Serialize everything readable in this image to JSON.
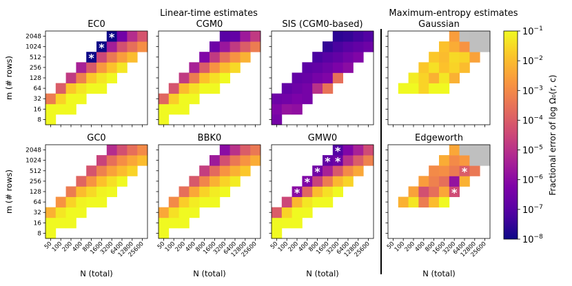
{
  "figure": {
    "group_titles": [
      "Linear-time estimates",
      "Maximum-entropy estimates"
    ],
    "colorbar": {
      "label": "Fractional error of log Ω₀(r, c)",
      "ticks": [
        {
          "exp": -1,
          "text": "10",
          "sup": "−1"
        },
        {
          "exp": -2,
          "text": "10",
          "sup": "−2"
        },
        {
          "exp": -3,
          "text": "10",
          "sup": "−3"
        },
        {
          "exp": -4,
          "text": "10",
          "sup": "−4"
        },
        {
          "exp": -5,
          "text": "10",
          "sup": "−5"
        },
        {
          "exp": -6,
          "text": "10",
          "sup": "−6"
        },
        {
          "exp": -7,
          "text": "10",
          "sup": "−7"
        },
        {
          "exp": -8,
          "text": "10",
          "sup": "−8"
        }
      ],
      "scale": "log",
      "range": [
        -8,
        -1
      ],
      "colormap": "plasma"
    }
  },
  "chart_data": [
    {
      "type": "heatmap",
      "title": "EC0",
      "ylabel": "m (# rows)",
      "xlabel": "",
      "x": [
        "50",
        "100",
        "200",
        "400",
        "800",
        "1600",
        "3200",
        "6400",
        "12800",
        "25600"
      ],
      "y": [
        "8",
        "16",
        "32",
        "64",
        "128",
        "256",
        "512",
        "1024",
        "2048"
      ],
      "scale": "log",
      "log10_values": [
        [
          -1.0,
          null,
          null,
          null,
          null,
          null,
          null,
          null,
          null,
          null
        ],
        [
          -1.0,
          -1.0,
          -1.0,
          null,
          null,
          null,
          null,
          null,
          null,
          null
        ],
        [
          -3.3,
          -1.6,
          -1.0,
          -1.0,
          null,
          null,
          null,
          null,
          null,
          null
        ],
        [
          null,
          -4.0,
          -1.8,
          -1.3,
          -1.0,
          -1.0,
          null,
          null,
          null,
          null
        ],
        [
          null,
          null,
          -4.8,
          -3.2,
          -1.8,
          -1.3,
          -1.0,
          null,
          null,
          null
        ],
        [
          null,
          null,
          null,
          -5.4,
          -4.1,
          -2.7,
          -1.9,
          -1.3,
          null,
          null
        ],
        [
          null,
          null,
          null,
          null,
          -8.0,
          -4.5,
          -3.4,
          -2.6,
          -2.0,
          null
        ],
        [
          null,
          null,
          null,
          null,
          null,
          -8.0,
          -5.5,
          -4.3,
          -3.6,
          -2.9
        ],
        [
          null,
          null,
          null,
          null,
          null,
          null,
          -8.0,
          -6.5,
          -5.1,
          -4.2
        ]
      ],
      "stars": [
        [
          6,
          4
        ],
        [
          7,
          5
        ],
        [
          8,
          6
        ]
      ]
    },
    {
      "type": "heatmap",
      "title": "CGM0",
      "ylabel": "",
      "xlabel": "",
      "x": [
        "50",
        "100",
        "200",
        "400",
        "800",
        "1600",
        "3200",
        "6400",
        "12800",
        "25600"
      ],
      "y": [
        "8",
        "16",
        "32",
        "64",
        "128",
        "256",
        "512",
        "1024",
        "2048"
      ],
      "scale": "log",
      "log10_values": [
        [
          -1.0,
          null,
          null,
          null,
          null,
          null,
          null,
          null,
          null,
          null
        ],
        [
          -1.0,
          -1.0,
          -1.0,
          null,
          null,
          null,
          null,
          null,
          null,
          null
        ],
        [
          -3.8,
          -1.7,
          -1.0,
          -1.0,
          null,
          null,
          null,
          null,
          null,
          null
        ],
        [
          null,
          -4.2,
          -2.0,
          -1.4,
          -1.0,
          -1.0,
          null,
          null,
          null,
          null
        ],
        [
          null,
          null,
          -4.8,
          -3.3,
          -1.9,
          -1.4,
          -1.0,
          null,
          null,
          null
        ],
        [
          null,
          null,
          null,
          -5.4,
          -4.0,
          -2.8,
          -2.0,
          -1.5,
          null,
          null
        ],
        [
          null,
          null,
          null,
          null,
          -6.2,
          -4.8,
          -3.6,
          -2.8,
          -2.2,
          null
        ],
        [
          null,
          null,
          null,
          null,
          null,
          -6.6,
          -5.7,
          -4.8,
          -4.0,
          -3.3
        ],
        [
          null,
          null,
          null,
          null,
          null,
          null,
          -7.0,
          -6.8,
          -5.6,
          -4.8
        ]
      ],
      "stars": []
    },
    {
      "type": "heatmap",
      "title": "SIS (CGM0-based)",
      "ylabel": "",
      "xlabel": "",
      "x": [
        "50",
        "100",
        "200",
        "400",
        "800",
        "1600",
        "3200",
        "6400",
        "12800",
        "25600"
      ],
      "y": [
        "8",
        "16",
        "32",
        "64",
        "128",
        "256",
        "512",
        "1024",
        "2048"
      ],
      "scale": "log",
      "log10_values": [
        [
          -6.4,
          null,
          null,
          null,
          null,
          null,
          null,
          null,
          null,
          null
        ],
        [
          -6.2,
          -5.8,
          -5.9,
          null,
          null,
          null,
          null,
          null,
          null,
          null
        ],
        [
          -6.6,
          -6.5,
          -6.3,
          -6.4,
          null,
          null,
          null,
          null,
          null,
          null
        ],
        [
          null,
          -6.8,
          -6.6,
          -6.4,
          -5.0,
          -3.5,
          null,
          null,
          null,
          null
        ],
        [
          null,
          null,
          -6.8,
          -6.7,
          -6.4,
          -6.2,
          -3.6,
          null,
          null,
          null
        ],
        [
          null,
          null,
          null,
          -6.9,
          -6.8,
          -6.6,
          -6.3,
          -6.0,
          null,
          null
        ],
        [
          null,
          null,
          null,
          null,
          -7.2,
          -7.0,
          -6.8,
          -6.5,
          -6.2,
          null
        ],
        [
          null,
          null,
          null,
          null,
          null,
          -7.5,
          -7.2,
          -7.0,
          -6.8,
          -6.6
        ],
        [
          null,
          null,
          null,
          null,
          null,
          null,
          -7.6,
          -7.5,
          -7.3,
          -7.1
        ]
      ],
      "stars": []
    },
    {
      "type": "heatmap",
      "title": "Gaussian",
      "ylabel": "",
      "xlabel": "",
      "x": [
        "50",
        "100",
        "200",
        "400",
        "800",
        "1600",
        "3200",
        "6400",
        "12800",
        "25600"
      ],
      "y": [
        "8",
        "16",
        "32",
        "64",
        "128",
        "256",
        "512",
        "1024",
        "2048"
      ],
      "scale": "log",
      "missing_color": "#bfbfbf",
      "log10_values": [
        [
          null,
          null,
          null,
          null,
          null,
          null,
          null,
          null,
          null,
          null
        ],
        [
          null,
          null,
          null,
          null,
          null,
          null,
          null,
          null,
          null,
          null
        ],
        [
          null,
          null,
          null,
          null,
          null,
          null,
          null,
          null,
          null,
          null
        ],
        [
          null,
          -1.0,
          -1.0,
          -1.6,
          -1.0,
          -1.0,
          null,
          null,
          null,
          null
        ],
        [
          null,
          null,
          -1.2,
          -1.6,
          -2.2,
          -1.3,
          -2.2,
          null,
          null,
          null
        ],
        [
          null,
          null,
          null,
          -1.8,
          -1.4,
          -1.9,
          -1.6,
          -2.0,
          null,
          null
        ],
        [
          null,
          null,
          null,
          null,
          -1.8,
          -2.0,
          -1.5,
          -1.6,
          -2.5,
          null
        ],
        [
          null,
          null,
          null,
          null,
          null,
          -1.9,
          -2.3,
          -2.8,
          "missing",
          "missing"
        ],
        [
          null,
          null,
          null,
          null,
          null,
          null,
          -2.6,
          "missing",
          "missing",
          "missing"
        ]
      ],
      "stars": []
    },
    {
      "type": "heatmap",
      "title": "GC0",
      "ylabel": "m (# rows)",
      "xlabel": "N (total)",
      "x": [
        "50",
        "100",
        "200",
        "400",
        "800",
        "1600",
        "3200",
        "6400",
        "12800",
        "25600"
      ],
      "y": [
        "8",
        "16",
        "32",
        "64",
        "128",
        "256",
        "512",
        "1024",
        "2048"
      ],
      "scale": "log",
      "log10_values": [
        [
          -1.0,
          null,
          null,
          null,
          null,
          null,
          null,
          null,
          null,
          null
        ],
        [
          -1.0,
          -1.0,
          -1.0,
          null,
          null,
          null,
          null,
          null,
          null,
          null
        ],
        [
          -2.2,
          -1.3,
          -1.0,
          -1.0,
          null,
          null,
          null,
          null,
          null,
          null
        ],
        [
          null,
          -2.8,
          -1.6,
          -1.1,
          -1.0,
          -1.0,
          null,
          null,
          null,
          null
        ],
        [
          null,
          null,
          -3.3,
          -2.0,
          -1.5,
          -1.1,
          -1.0,
          null,
          null,
          null
        ],
        [
          null,
          null,
          null,
          -3.8,
          -2.8,
          -1.9,
          -1.4,
          -1.0,
          null,
          null
        ],
        [
          null,
          null,
          null,
          null,
          -4.2,
          -3.2,
          -2.5,
          -2.0,
          -1.6,
          null
        ],
        [
          null,
          null,
          null,
          null,
          null,
          -4.6,
          -3.6,
          -2.9,
          -2.4,
          -2.0
        ],
        [
          null,
          null,
          null,
          null,
          null,
          null,
          -5.1,
          -4.3,
          -3.6,
          -3.0
        ]
      ],
      "stars": []
    },
    {
      "type": "heatmap",
      "title": "BBK0",
      "ylabel": "",
      "xlabel": "N (total)",
      "x": [
        "50",
        "100",
        "200",
        "400",
        "800",
        "1600",
        "3200",
        "6400",
        "12800",
        "25600"
      ],
      "y": [
        "8",
        "16",
        "32",
        "64",
        "128",
        "256",
        "512",
        "1024",
        "2048"
      ],
      "scale": "log",
      "log10_values": [
        [
          -1.0,
          null,
          null,
          null,
          null,
          null,
          null,
          null,
          null,
          null
        ],
        [
          -1.0,
          -1.0,
          -1.0,
          null,
          null,
          null,
          null,
          null,
          null,
          null
        ],
        [
          -2.4,
          -1.4,
          -1.0,
          -1.0,
          null,
          null,
          null,
          null,
          null,
          null
        ],
        [
          null,
          -3.0,
          -1.7,
          -1.2,
          -1.0,
          -1.0,
          null,
          null,
          null,
          null
        ],
        [
          null,
          null,
          -3.6,
          -2.4,
          -1.6,
          -1.2,
          -1.0,
          null,
          null,
          null
        ],
        [
          null,
          null,
          null,
          -4.1,
          -3.1,
          -2.2,
          -1.6,
          -1.2,
          null,
          null
        ],
        [
          null,
          null,
          null,
          null,
          -4.7,
          -3.7,
          -2.8,
          -2.2,
          -1.8,
          null
        ],
        [
          null,
          null,
          null,
          null,
          null,
          -5.6,
          -4.3,
          -3.4,
          -2.8,
          -2.3
        ],
        [
          null,
          null,
          null,
          null,
          null,
          null,
          -6.0,
          -5.0,
          -4.0,
          -3.4
        ]
      ],
      "stars": []
    },
    {
      "type": "heatmap",
      "title": "GMW0",
      "ylabel": "",
      "xlabel": "N (total)",
      "x": [
        "50",
        "100",
        "200",
        "400",
        "800",
        "1600",
        "3200",
        "6400",
        "12800",
        "25600"
      ],
      "y": [
        "8",
        "16",
        "32",
        "64",
        "128",
        "256",
        "512",
        "1024",
        "2048"
      ],
      "scale": "log",
      "log10_values": [
        [
          -1.0,
          null,
          null,
          null,
          null,
          null,
          null,
          null,
          null,
          null
        ],
        [
          -1.0,
          -1.0,
          -1.0,
          null,
          null,
          null,
          null,
          null,
          null,
          null
        ],
        [
          -4.0,
          -1.6,
          -1.0,
          -1.0,
          null,
          null,
          null,
          null,
          null,
          null
        ],
        [
          null,
          -4.5,
          -2.1,
          -1.3,
          -1.0,
          -1.0,
          null,
          null,
          null,
          null
        ],
        [
          null,
          null,
          -6.0,
          -3.8,
          -2.0,
          -1.4,
          -1.0,
          null,
          null,
          null
        ],
        [
          null,
          null,
          null,
          -6.2,
          -4.6,
          -3.3,
          -2.1,
          -1.6,
          null,
          null
        ],
        [
          null,
          null,
          null,
          null,
          -6.5,
          -5.4,
          -4.1,
          -3.0,
          -2.4,
          null
        ],
        [
          null,
          null,
          null,
          null,
          null,
          -6.8,
          -6.6,
          -5.0,
          -4.0,
          -3.2
        ],
        [
          null,
          null,
          null,
          null,
          null,
          null,
          -7.1,
          -6.2,
          -5.4,
          -4.4
        ]
      ],
      "stars": [
        [
          4,
          2
        ],
        [
          5,
          3
        ],
        [
          6,
          4
        ],
        [
          7,
          5
        ],
        [
          7,
          6
        ],
        [
          8,
          6
        ]
      ]
    },
    {
      "type": "heatmap",
      "title": "Edgeworth",
      "ylabel": "",
      "xlabel": "N (total)",
      "x": [
        "50",
        "100",
        "200",
        "400",
        "800",
        "1600",
        "3200",
        "6400",
        "12800",
        "25600"
      ],
      "y": [
        "8",
        "16",
        "32",
        "64",
        "128",
        "256",
        "512",
        "1024",
        "2048"
      ],
      "scale": "log",
      "missing_color": "#bfbfbf",
      "log10_values": [
        [
          null,
          null,
          null,
          null,
          null,
          null,
          null,
          null,
          null,
          null
        ],
        [
          null,
          null,
          null,
          null,
          null,
          null,
          null,
          null,
          null,
          null
        ],
        [
          null,
          null,
          null,
          null,
          null,
          null,
          null,
          null,
          null,
          null
        ],
        [
          null,
          -2.2,
          -1.3,
          -3.3,
          -2.0,
          -1.0,
          null,
          null,
          null,
          null
        ],
        [
          null,
          null,
          -2.5,
          -4.3,
          -3.6,
          -2.4,
          -4.4,
          null,
          null,
          null
        ],
        [
          null,
          null,
          null,
          -2.6,
          -3.2,
          -3.6,
          -5.8,
          -2.2,
          null,
          null
        ],
        [
          null,
          null,
          null,
          null,
          -3.0,
          -2.9,
          -3.3,
          -4.0,
          -3.4,
          null
        ],
        [
          null,
          null,
          null,
          null,
          null,
          -2.3,
          -3.0,
          -2.7,
          "missing",
          "missing"
        ],
        [
          null,
          null,
          null,
          null,
          null,
          null,
          -2.4,
          "missing",
          "missing",
          "missing"
        ]
      ],
      "stars": [
        [
          4,
          6
        ],
        [
          3,
          6
        ],
        [
          6,
          7
        ]
      ]
    }
  ]
}
